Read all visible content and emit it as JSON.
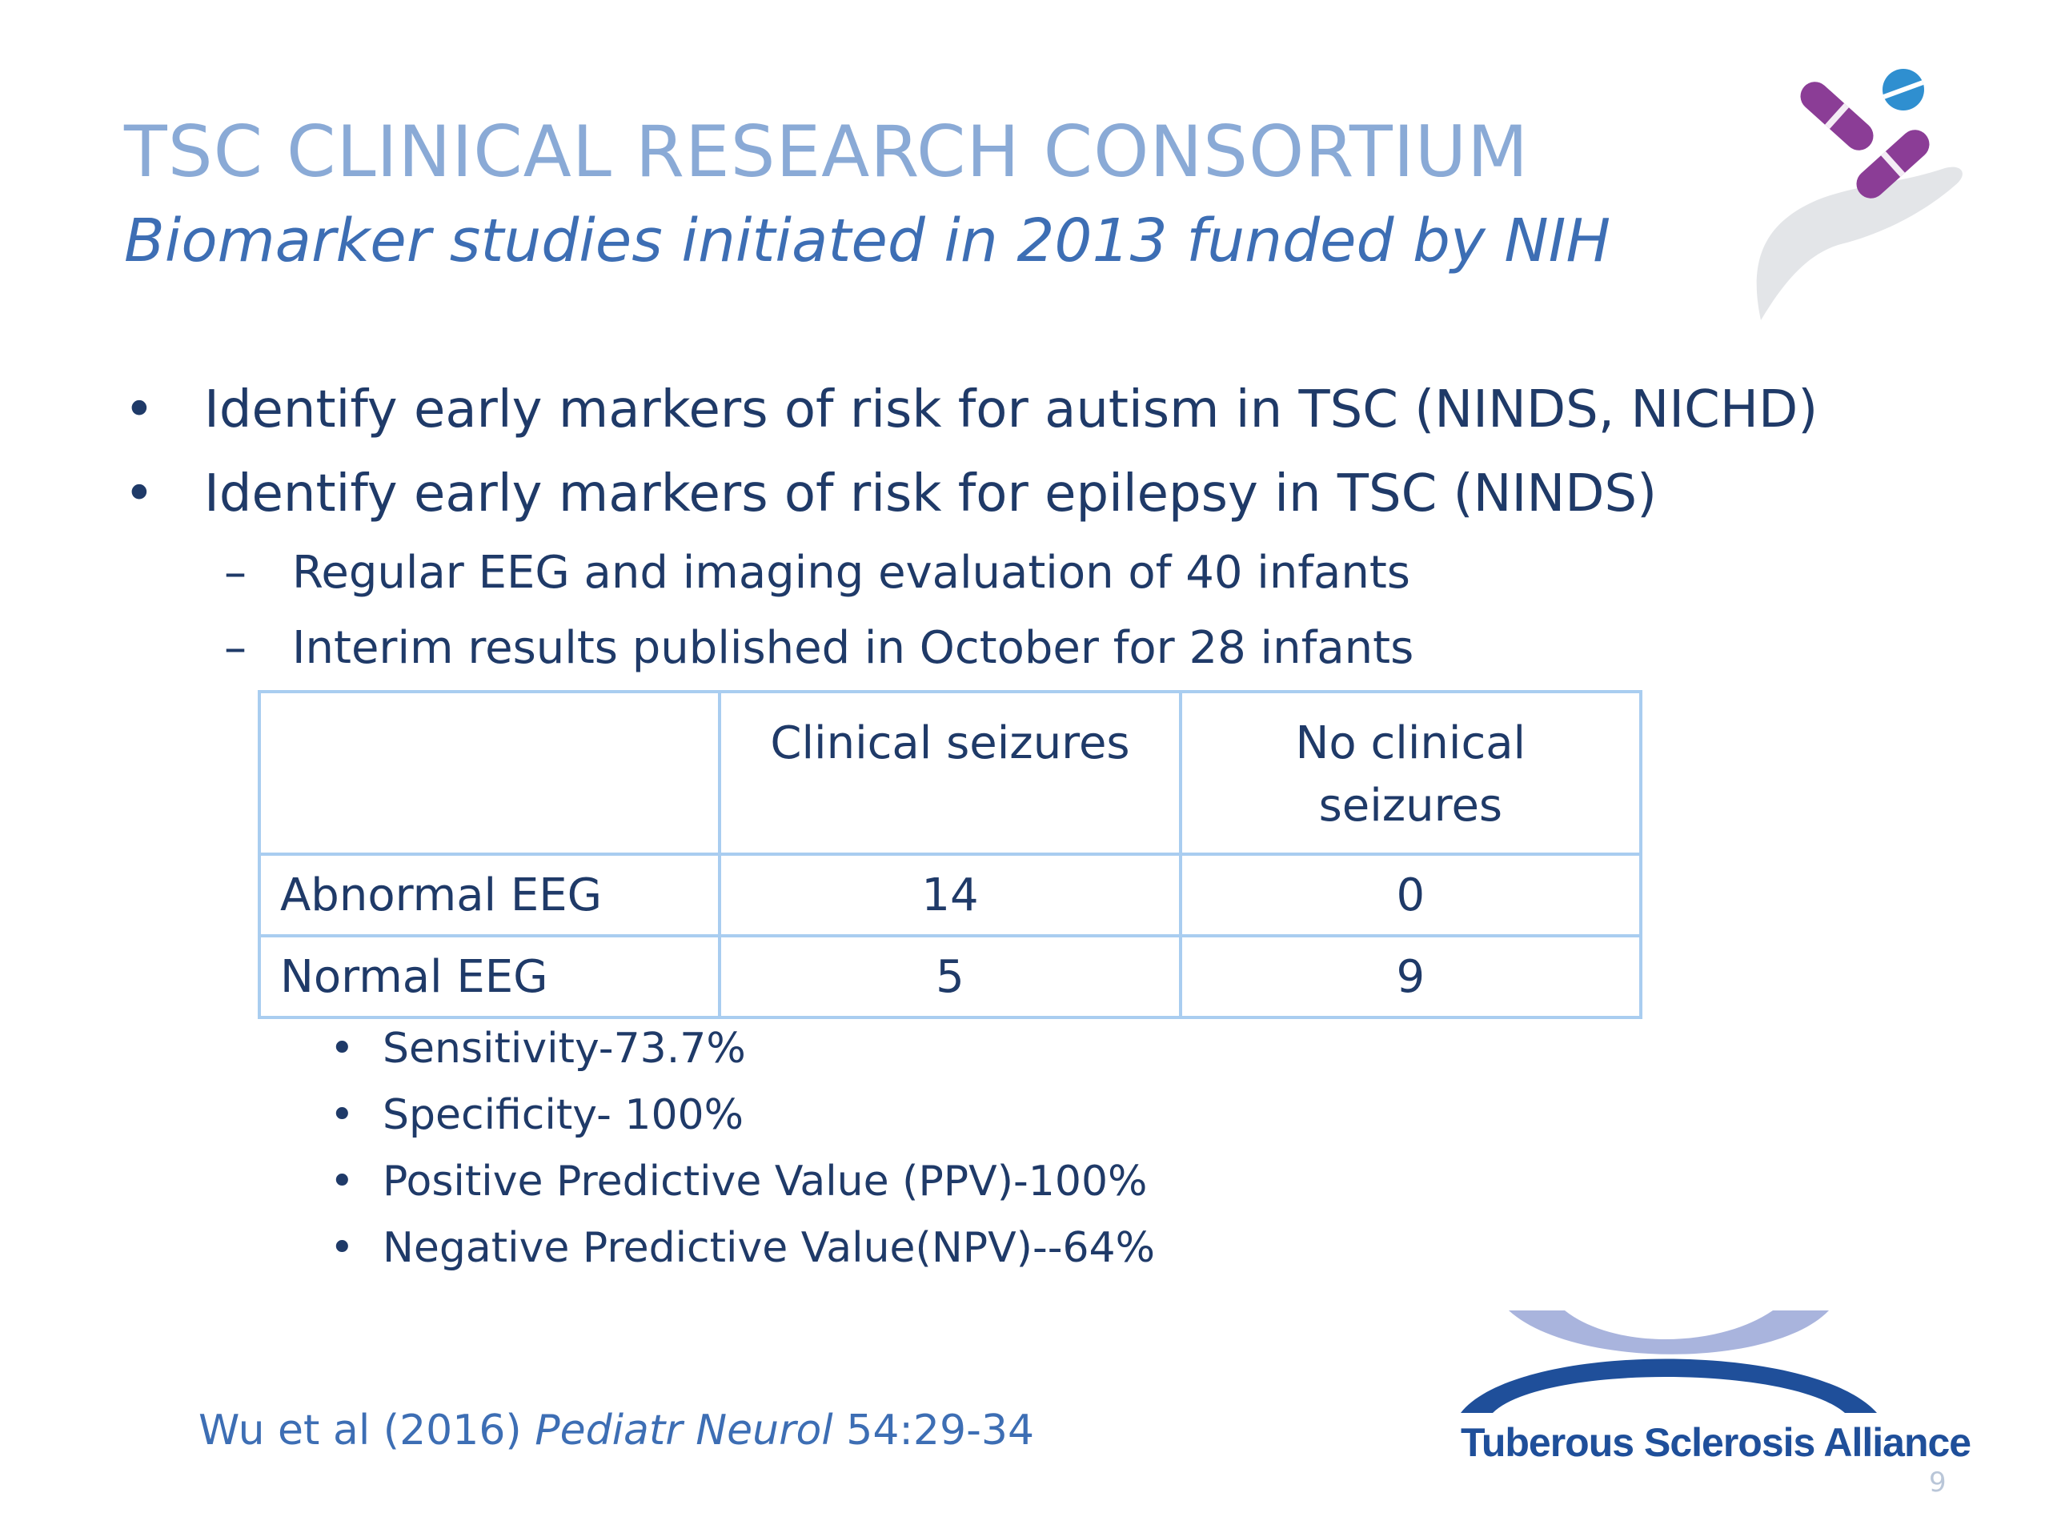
{
  "slide": {
    "title": "TSC CLINICAL RESEARCH CONSORTIUM",
    "subtitle": "Biomarker studies initiated in 2013 funded by NIH",
    "bullets": [
      {
        "marker": "•",
        "text": "Identify early markers of risk for autism in TSC (NINDS, NICHD)"
      },
      {
        "marker": "•",
        "text": "Identify early markers of risk for epilepsy in TSC (NINDS)"
      }
    ],
    "sub_bullets": [
      {
        "marker": "–",
        "text": "Regular EEG and imaging evaluation of 40 infants"
      },
      {
        "marker": "–",
        "text": "Interim results published in October for 28 infants"
      }
    ],
    "table": {
      "headers": [
        "",
        "Clinical seizures",
        "No clinical seizures"
      ],
      "rows": [
        {
          "label": "Abnormal EEG",
          "clinical": "14",
          "no_clinical": "0"
        },
        {
          "label": "Normal EEG",
          "clinical": "5",
          "no_clinical": "9"
        }
      ]
    },
    "stats": [
      {
        "marker": "•",
        "text": "Sensitivity-73.7%"
      },
      {
        "marker": "•",
        "text": "Specificity- 100%"
      },
      {
        "marker": "•",
        "text": "Positive Predictive Value (PPV)-100%"
      },
      {
        "marker": "•",
        "text": "Negative Predictive Value(NPV)--64%"
      }
    ],
    "citation": {
      "authors": "Wu et al (2016) ",
      "journal": "Pediatr Neurol",
      "volume": " 54:29-34"
    },
    "logo_text": "Tuberous Sclerosis Alliance",
    "page_number": "9"
  },
  "colors": {
    "title": "#8aaad6",
    "subtitle": "#3d6eb4",
    "body_text": "#1f3a68",
    "table_border": "#a9cdf0",
    "pill_purple": "#8b3d96",
    "pill_blue": "#2f8fd0",
    "hand_gray": "#e3e5e8",
    "logo_dark_blue": "#1f4f9a",
    "logo_light_blue": "#a9b4dd"
  },
  "icons": [
    "pills-in-hand-icon",
    "tuberous-sclerosis-alliance-logo"
  ]
}
